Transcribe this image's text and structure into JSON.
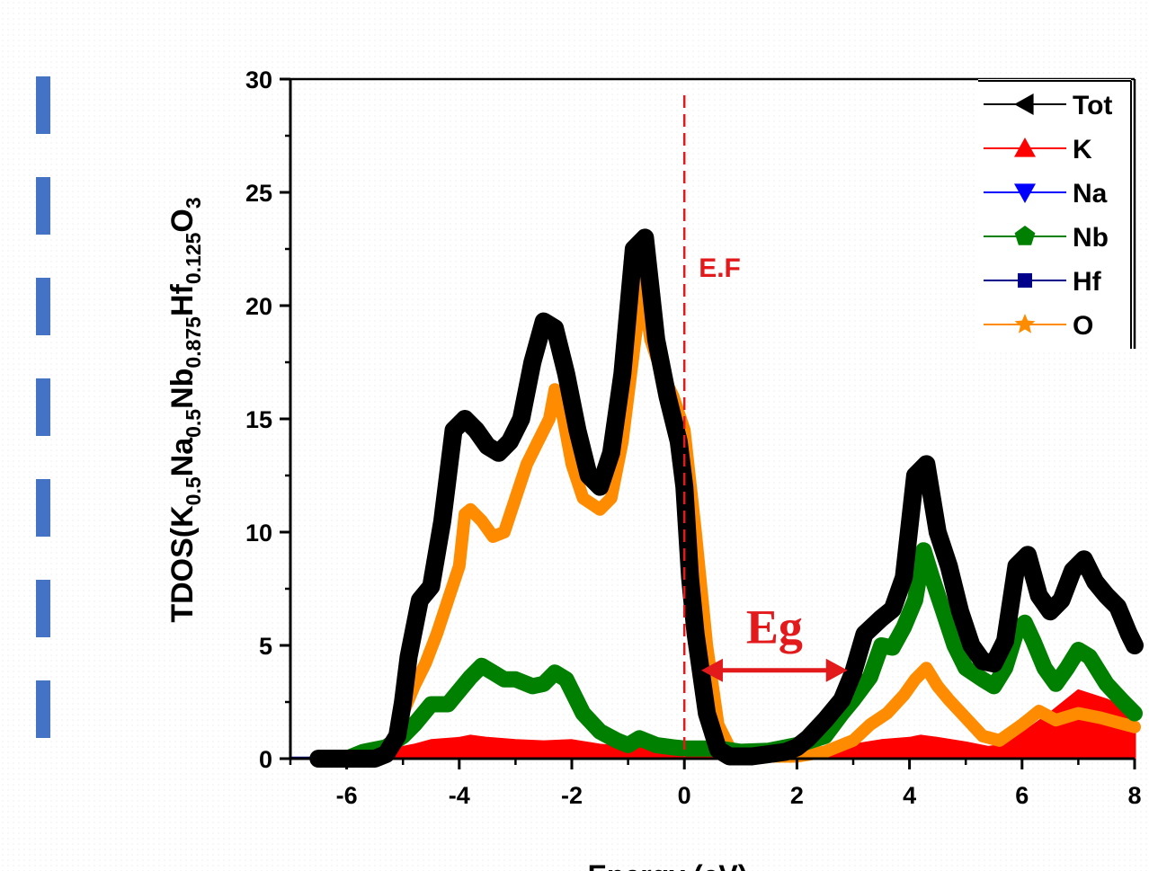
{
  "decor_color": "#4472c4",
  "chart_data": {
    "type": "line",
    "xlabel": "Energy (eV)",
    "ylabel": {
      "parts": [
        {
          "t": "TDOS(K",
          "s": false
        },
        {
          "t": "0.5",
          "s": true
        },
        {
          "t": "Na",
          "s": false
        },
        {
          "t": "0.5",
          "s": true
        },
        {
          "t": "Nb",
          "s": false
        },
        {
          "t": "0.875",
          "s": true
        },
        {
          "t": "Hf",
          "s": false
        },
        {
          "t": "0.125",
          "s": true
        },
        {
          "t": "O",
          "s": false
        },
        {
          "t": "3",
          "s": true
        }
      ]
    },
    "xlim": [
      -7,
      8
    ],
    "ylim": [
      0,
      30
    ],
    "xticks": [
      -6,
      -4,
      -2,
      0,
      2,
      4,
      6,
      8
    ],
    "yticks": [
      0,
      5,
      10,
      15,
      20,
      25,
      30
    ],
    "grid": false,
    "legend_position": "top-right",
    "series": [
      {
        "name": "K",
        "color": "#ff0000",
        "marker": "triangle-up",
        "fill": true,
        "x": [
          -5.8,
          -5.4,
          -5.0,
          -4.8,
          -4.5,
          -4.0,
          -3.8,
          -3.5,
          -3.0,
          -2.5,
          -2.0,
          -1.5,
          -1.0,
          -0.5,
          0.0,
          0.4,
          0.8,
          1.5,
          2.0,
          2.5,
          3.0,
          3.5,
          4.0,
          4.2,
          4.5,
          5.0,
          5.4,
          5.7,
          6.0,
          6.5,
          7.0,
          7.5,
          8.0
        ],
        "y": [
          0,
          0.2,
          0.5,
          0.6,
          0.8,
          0.9,
          1.0,
          0.9,
          0.8,
          0.75,
          0.8,
          0.6,
          0.5,
          0.4,
          0.25,
          0.1,
          0.0,
          0.0,
          0.05,
          0.3,
          0.6,
          0.8,
          0.9,
          1.0,
          0.9,
          0.7,
          0.5,
          0.6,
          1.1,
          2.0,
          3.0,
          2.6,
          2.0
        ]
      },
      {
        "name": "Na",
        "color": "#0000ff",
        "marker": "triangle-down",
        "fill": false,
        "x": [
          -7,
          8
        ],
        "y": [
          0.02,
          0.02
        ]
      },
      {
        "name": "Nb",
        "color": "#008000",
        "marker": "pentagon",
        "fill": false,
        "x": [
          -6.0,
          -5.7,
          -5.3,
          -5.0,
          -4.8,
          -4.5,
          -4.2,
          -4.0,
          -3.8,
          -3.6,
          -3.4,
          -3.2,
          -3.0,
          -2.7,
          -2.5,
          -2.3,
          -2.1,
          -1.8,
          -1.5,
          -1.2,
          -1.0,
          -0.8,
          -0.5,
          -0.2,
          0.0,
          0.3,
          0.6,
          1.0,
          1.5,
          2.0,
          2.5,
          2.8,
          3.0,
          3.3,
          3.5,
          3.7,
          3.9,
          4.1,
          4.25,
          4.4,
          4.6,
          4.8,
          5.0,
          5.3,
          5.5,
          5.7,
          5.9,
          6.05,
          6.2,
          6.4,
          6.6,
          6.8,
          7.0,
          7.2,
          7.5,
          7.8,
          8.0
        ],
        "y": [
          0,
          0.3,
          0.5,
          1.0,
          1.5,
          2.4,
          2.4,
          3.0,
          3.6,
          4.1,
          3.8,
          3.5,
          3.5,
          3.2,
          3.3,
          3.8,
          3.5,
          2.0,
          1.2,
          0.8,
          0.6,
          0.9,
          0.6,
          0.5,
          0.45,
          0.45,
          0.45,
          0.3,
          0.35,
          0.6,
          1.0,
          2.0,
          2.6,
          3.6,
          5.0,
          4.9,
          5.8,
          7.0,
          9.2,
          8.0,
          6.5,
          5.0,
          4.0,
          3.5,
          3.2,
          4.0,
          5.6,
          6.0,
          5.2,
          4.0,
          3.3,
          4.0,
          4.8,
          4.5,
          3.3,
          2.5,
          2.0
        ]
      },
      {
        "name": "Hf",
        "color": "#00008b",
        "marker": "square",
        "fill": false,
        "x": [
          -7,
          8
        ],
        "y": [
          0.03,
          0.03
        ]
      },
      {
        "name": "O",
        "color": "#ff8c00",
        "marker": "star",
        "fill": false,
        "x": [
          -5.2,
          -5.0,
          -4.8,
          -4.6,
          -4.4,
          -4.2,
          -4.0,
          -3.9,
          -3.8,
          -3.6,
          -3.4,
          -3.2,
          -3.0,
          -2.8,
          -2.6,
          -2.4,
          -2.3,
          -2.15,
          -2.0,
          -1.8,
          -1.5,
          -1.3,
          -1.1,
          -0.9,
          -0.75,
          -0.6,
          -0.4,
          -0.2,
          0.0,
          0.2,
          0.4,
          0.6,
          0.8,
          1.0,
          1.5,
          2.0,
          2.5,
          3.0,
          3.3,
          3.6,
          3.9,
          4.1,
          4.3,
          4.5,
          4.7,
          5.0,
          5.3,
          5.6,
          6.0,
          6.3,
          6.6,
          7.0,
          7.4,
          7.7,
          8.0
        ],
        "y": [
          0.5,
          2.0,
          3.2,
          4.2,
          5.5,
          7.0,
          8.5,
          10.8,
          11.0,
          10.5,
          9.8,
          10.0,
          11.5,
          13.0,
          14.0,
          15.0,
          16.3,
          15.0,
          13.0,
          11.5,
          11.0,
          11.5,
          14.0,
          18.0,
          21.0,
          18.5,
          17.0,
          16.0,
          14.5,
          10.0,
          5.0,
          1.5,
          0.5,
          0.2,
          0.1,
          0.1,
          0.3,
          0.8,
          1.5,
          2.0,
          2.8,
          3.5,
          4.0,
          3.2,
          2.6,
          1.8,
          1.0,
          0.8,
          1.5,
          2.1,
          1.7,
          2.0,
          1.8,
          1.6,
          1.4
        ]
      },
      {
        "name": "Tot",
        "color": "#000000",
        "marker": "triangle-left",
        "fill": false,
        "x": [
          -6.5,
          -5.5,
          -5.3,
          -5.1,
          -5.0,
          -4.9,
          -4.7,
          -4.5,
          -4.3,
          -4.1,
          -3.9,
          -3.7,
          -3.5,
          -3.3,
          -3.1,
          -2.9,
          -2.7,
          -2.5,
          -2.3,
          -2.1,
          -1.9,
          -1.7,
          -1.5,
          -1.3,
          -1.1,
          -0.9,
          -0.7,
          -0.5,
          -0.3,
          -0.1,
          0.0,
          0.1,
          0.2,
          0.4,
          0.6,
          0.8,
          1.0,
          1.2,
          1.5,
          1.8,
          2.0,
          2.2,
          2.5,
          2.8,
          3.0,
          3.2,
          3.5,
          3.7,
          3.9,
          4.1,
          4.3,
          4.5,
          4.7,
          4.9,
          5.1,
          5.3,
          5.5,
          5.7,
          5.9,
          6.1,
          6.3,
          6.5,
          6.7,
          6.9,
          7.1,
          7.3,
          7.5,
          7.7,
          7.9,
          8.0
        ],
        "y": [
          0,
          0,
          0.2,
          1.0,
          2.5,
          4.5,
          7.0,
          7.6,
          10.5,
          14.5,
          15.0,
          14.5,
          13.8,
          13.5,
          14.0,
          15.0,
          17.5,
          19.3,
          19.0,
          17.0,
          14.5,
          12.5,
          12.0,
          13.5,
          17.0,
          22.5,
          23.0,
          18.5,
          16.0,
          14.0,
          12.0,
          8.0,
          5.5,
          2.0,
          0.4,
          0.1,
          0.1,
          0.1,
          0.2,
          0.3,
          0.5,
          0.9,
          1.7,
          2.6,
          3.8,
          5.5,
          6.2,
          6.6,
          8.0,
          12.5,
          13.0,
          10.0,
          8.5,
          6.5,
          5.0,
          4.3,
          4.2,
          5.2,
          8.5,
          9.0,
          7.2,
          6.5,
          7.0,
          8.3,
          8.8,
          7.8,
          7.2,
          6.7,
          5.5,
          5.0
        ]
      }
    ],
    "legend_order": [
      "Tot",
      "K",
      "Na",
      "Nb",
      "Hf",
      "O"
    ],
    "fermi": {
      "x": 0,
      "label": "E.F",
      "color": "#e31a1c"
    },
    "gap": {
      "x_start": 0.3,
      "x_end": 2.9,
      "y": 3.9,
      "label": "Eg",
      "color": "#e31a1c"
    }
  }
}
